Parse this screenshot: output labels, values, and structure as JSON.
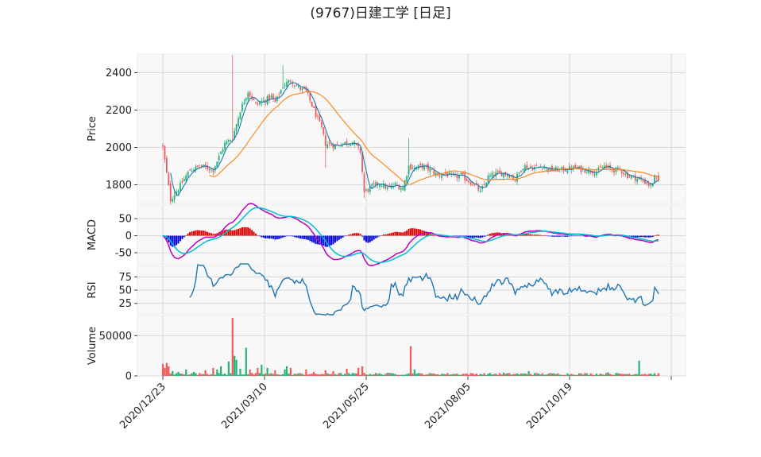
{
  "chart_data": {
    "type": "candlestick",
    "title": "(9767)日建工学 [日足]",
    "x_ticks": [
      "2020/12/23",
      "2021/03/10",
      "2021/05/25",
      "2021/08/05",
      "2021/10/19"
    ],
    "price_panel": {
      "ylabel": "Price",
      "yticks": [
        1800,
        2000,
        2200,
        2400
      ],
      "ylim": [
        1700,
        2500
      ],
      "close_anchors": [
        [
          0,
          2000
        ],
        [
          4,
          1720
        ],
        [
          8,
          1780
        ],
        [
          14,
          1880
        ],
        [
          20,
          1900
        ],
        [
          26,
          1880
        ],
        [
          32,
          2020
        ],
        [
          36,
          2050
        ],
        [
          40,
          2200
        ],
        [
          44,
          2300
        ],
        [
          48,
          2230
        ],
        [
          52,
          2250
        ],
        [
          56,
          2270
        ],
        [
          58,
          2240
        ],
        [
          62,
          2330
        ],
        [
          66,
          2360
        ],
        [
          70,
          2320
        ],
        [
          74,
          2300
        ],
        [
          78,
          2200
        ],
        [
          82,
          2100
        ],
        [
          84,
          2020
        ],
        [
          88,
          2010
        ],
        [
          92,
          2020
        ],
        [
          98,
          2030
        ],
        [
          102,
          1980
        ],
        [
          104,
          1760
        ],
        [
          108,
          1790
        ],
        [
          112,
          1810
        ],
        [
          116,
          1780
        ],
        [
          120,
          1800
        ],
        [
          124,
          1780
        ],
        [
          127,
          1900
        ],
        [
          130,
          1890
        ],
        [
          134,
          1900
        ],
        [
          138,
          1880
        ],
        [
          142,
          1850
        ],
        [
          146,
          1860
        ],
        [
          150,
          1840
        ],
        [
          154,
          1850
        ],
        [
          158,
          1820
        ],
        [
          162,
          1790
        ],
        [
          164,
          1760
        ],
        [
          168,
          1840
        ],
        [
          172,
          1860
        ],
        [
          178,
          1860
        ],
        [
          182,
          1830
        ],
        [
          186,
          1900
        ],
        [
          190,
          1890
        ],
        [
          196,
          1900
        ],
        [
          200,
          1880
        ],
        [
          206,
          1880
        ],
        [
          212,
          1890
        ],
        [
          218,
          1880
        ],
        [
          224,
          1870
        ],
        [
          228,
          1900
        ],
        [
          232,
          1880
        ],
        [
          236,
          1880
        ],
        [
          240,
          1850
        ],
        [
          246,
          1830
        ],
        [
          250,
          1810
        ],
        [
          252,
          1790
        ],
        [
          254,
          1840
        ],
        [
          256,
          1820
        ]
      ],
      "sma_short_color": "#1f77b4",
      "sma_long_color": "#ff7f0e"
    },
    "macd_panel": {
      "ylabel": "MACD",
      "yticks": [
        -50,
        0,
        50
      ],
      "ylim": [
        -85,
        90
      ],
      "macd_color": "#c000c0",
      "signal_color": "#00c0d0"
    },
    "rsi_panel": {
      "ylabel": "RSI",
      "yticks": [
        25,
        50,
        75
      ],
      "ylim": [
        5,
        95
      ],
      "color": "#1f77b4"
    },
    "volume_panel": {
      "ylabel": "Volume",
      "yticks": [
        0,
        50000
      ],
      "ylim": [
        0,
        75000
      ],
      "spikes": [
        [
          0,
          15000
        ],
        [
          1,
          10000
        ],
        [
          2,
          16000
        ],
        [
          3,
          12000
        ],
        [
          5,
          6000
        ],
        [
          8,
          5000
        ],
        [
          12,
          8000
        ],
        [
          16,
          5000
        ],
        [
          22,
          7000
        ],
        [
          26,
          10000
        ],
        [
          28,
          8000
        ],
        [
          30,
          12000
        ],
        [
          34,
          18000
        ],
        [
          36,
          72000
        ],
        [
          37,
          25000
        ],
        [
          38,
          20000
        ],
        [
          40,
          9000
        ],
        [
          43,
          35000
        ],
        [
          45,
          8000
        ],
        [
          49,
          10000
        ],
        [
          51,
          14000
        ],
        [
          54,
          10000
        ],
        [
          58,
          7000
        ],
        [
          63,
          8000
        ],
        [
          64,
          12000
        ],
        [
          66,
          10000
        ],
        [
          74,
          8000
        ],
        [
          78,
          5000
        ],
        [
          84,
          7000
        ],
        [
          88,
          6000
        ],
        [
          95,
          9000
        ],
        [
          101,
          10000
        ],
        [
          103,
          12000
        ],
        [
          116,
          4000
        ],
        [
          128,
          37000
        ],
        [
          130,
          8000
        ],
        [
          176,
          4000
        ],
        [
          189,
          6000
        ],
        [
          230,
          4500
        ],
        [
          246,
          19000
        ],
        [
          252,
          3000
        ]
      ],
      "up_color": "#26b37a",
      "down_color": "#f05a5a"
    }
  }
}
